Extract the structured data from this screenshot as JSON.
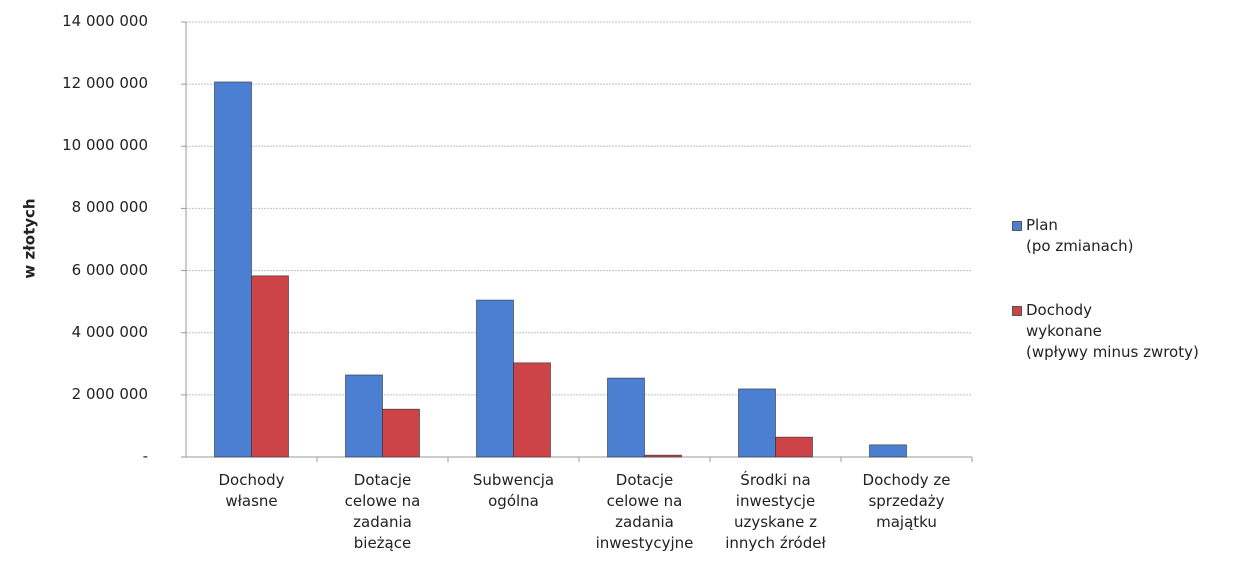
{
  "chart_data": {
    "type": "bar",
    "y_label": "w złotych",
    "categories": [
      "Dochody\nwłasne",
      "Dotacje\ncelowe na\nzadania\nbieżące",
      "Subwencja\nogólna",
      "Dotacje\ncelowe na\nzadania\ninwestycyjne",
      "Środki na\ninwestycje\nuzyskane z\ninnych źródeł",
      "Dochody ze\nsprzedaży\nmajątku"
    ],
    "series": [
      {
        "name": "Plan\n(po zmianach)",
        "color": "#4a7fd2",
        "values": [
          12070000,
          2640000,
          5050000,
          2540000,
          2190000,
          390000
        ]
      },
      {
        "name": "Dochody\nwykonane\n(wpływy minus zwroty)",
        "color": "#cc4448",
        "values": [
          5830000,
          1540000,
          3030000,
          60000,
          640000,
          0
        ]
      }
    ],
    "ylim": [
      0,
      14000000
    ],
    "yticks": [
      {
        "value": 0,
        "label": "-"
      },
      {
        "value": 2000000,
        "label": "2 000 000"
      },
      {
        "value": 4000000,
        "label": "4 000 000"
      },
      {
        "value": 6000000,
        "label": "6 000 000"
      },
      {
        "value": 8000000,
        "label": "8 000 000"
      },
      {
        "value": 10000000,
        "label": "10 000 000"
      },
      {
        "value": 12000000,
        "label": "12 000 000"
      },
      {
        "value": 14000000,
        "label": "14 000 000"
      }
    ],
    "grid": true,
    "legend": "right"
  }
}
